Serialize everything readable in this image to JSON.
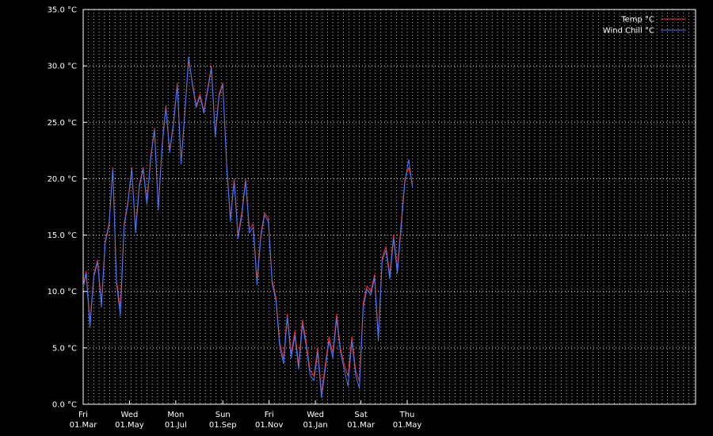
{
  "chart_data": {
    "type": "line",
    "background": "#000000",
    "grid": true,
    "legend_position": "top-right",
    "ylim": [
      0,
      35
    ],
    "yticks": [
      {
        "value": 0,
        "label": "0.0 °C"
      },
      {
        "value": 5,
        "label": "5.0 °C"
      },
      {
        "value": 10,
        "label": "10.0 °C"
      },
      {
        "value": 15,
        "label": "15.0 °C"
      },
      {
        "value": 20,
        "label": "20.0 °C"
      },
      {
        "value": 25,
        "label": "25.0 °C"
      },
      {
        "value": 30,
        "label": "30.0 °C"
      },
      {
        "value": 35,
        "label": "35.0 °C"
      }
    ],
    "x_range": [
      "2019-03-01",
      "2021-05-16"
    ],
    "xticks": [
      {
        "date": "2019-03-01",
        "day": "Fri",
        "date_label": "01.Mar"
      },
      {
        "date": "2019-05-01",
        "day": "Wed",
        "date_label": "01.May"
      },
      {
        "date": "2019-07-01",
        "day": "Mon",
        "date_label": "01.Jul"
      },
      {
        "date": "2019-09-01",
        "day": "Sun",
        "date_label": "01.Sep"
      },
      {
        "date": "2019-11-01",
        "day": "Fri",
        "date_label": "01.Nov"
      },
      {
        "date": "2020-01-01",
        "day": "Wed",
        "date_label": "01.Jan"
      },
      {
        "date": "2020-03-01",
        "day": "Sat",
        "date_label": "01.Mar"
      },
      {
        "date": "2020-05-01",
        "day": "Thu",
        "date_label": "01.May"
      }
    ],
    "series": [
      {
        "name": "Temp °C",
        "color": "#ff2a2a",
        "x": [
          "2019-03-01",
          "2019-03-05",
          "2019-03-10",
          "2019-03-15",
          "2019-03-20",
          "2019-03-25",
          "2019-03-30",
          "2019-04-04",
          "2019-04-09",
          "2019-04-14",
          "2019-04-19",
          "2019-04-24",
          "2019-04-29",
          "2019-05-04",
          "2019-05-09",
          "2019-05-14",
          "2019-05-19",
          "2019-05-24",
          "2019-05-29",
          "2019-06-03",
          "2019-06-08",
          "2019-06-13",
          "2019-06-18",
          "2019-06-23",
          "2019-06-28",
          "2019-07-03",
          "2019-07-08",
          "2019-07-13",
          "2019-07-18",
          "2019-07-23",
          "2019-07-28",
          "2019-08-02",
          "2019-08-07",
          "2019-08-12",
          "2019-08-17",
          "2019-08-22",
          "2019-08-27",
          "2019-09-01",
          "2019-09-06",
          "2019-09-11",
          "2019-09-16",
          "2019-09-21",
          "2019-09-26",
          "2019-10-01",
          "2019-10-06",
          "2019-10-11",
          "2019-10-16",
          "2019-10-21",
          "2019-10-26",
          "2019-10-31",
          "2019-11-05",
          "2019-11-10",
          "2019-11-15",
          "2019-11-20",
          "2019-11-25",
          "2019-11-30",
          "2019-12-05",
          "2019-12-10",
          "2019-12-15",
          "2019-12-20",
          "2019-12-25",
          "2019-12-30",
          "2020-01-04",
          "2020-01-09",
          "2020-01-14",
          "2020-01-19",
          "2020-01-24",
          "2020-01-29",
          "2020-02-03",
          "2020-02-08",
          "2020-02-13",
          "2020-02-18",
          "2020-02-23",
          "2020-02-28",
          "2020-03-04",
          "2020-03-09",
          "2020-03-14",
          "2020-03-19",
          "2020-03-24",
          "2020-03-29",
          "2020-04-03",
          "2020-04-08",
          "2020-04-13",
          "2020-04-18",
          "2020-04-23",
          "2020-04-28",
          "2020-05-03",
          "2020-05-08"
        ],
        "y": [
          10.5,
          11.8,
          7.2,
          11.5,
          12.8,
          9.0,
          14.5,
          16.0,
          21.0,
          11.0,
          8.5,
          16.0,
          18.0,
          21.0,
          15.5,
          19.5,
          21.0,
          18.0,
          22.0,
          24.5,
          17.5,
          23.0,
          26.5,
          22.5,
          25.0,
          28.5,
          21.5,
          26.0,
          30.5,
          28.5,
          26.5,
          27.5,
          26.0,
          28.0,
          30.0,
          24.0,
          27.5,
          28.5,
          21.5,
          16.5,
          20.0,
          15.0,
          17.0,
          20.0,
          15.5,
          16.0,
          11.0,
          15.0,
          17.0,
          16.5,
          11.0,
          9.5,
          5.5,
          4.0,
          8.0,
          4.5,
          6.5,
          3.5,
          7.5,
          5.5,
          3.0,
          2.5,
          5.0,
          1.0,
          3.5,
          6.0,
          4.5,
          8.0,
          5.0,
          3.5,
          2.5,
          6.0,
          3.0,
          2.0,
          9.0,
          10.5,
          10.0,
          11.5,
          6.0,
          13.0,
          14.0,
          11.5,
          15.0,
          12.0,
          16.0,
          20.0,
          21.0,
          19.5
        ]
      },
      {
        "name": "Wind Chill °C",
        "color": "#3d7dff",
        "x": [
          "2019-03-01",
          "2019-03-05",
          "2019-03-10",
          "2019-03-15",
          "2019-03-20",
          "2019-03-25",
          "2019-03-30",
          "2019-04-04",
          "2019-04-09",
          "2019-04-14",
          "2019-04-19",
          "2019-04-24",
          "2019-04-29",
          "2019-05-04",
          "2019-05-09",
          "2019-05-14",
          "2019-05-19",
          "2019-05-24",
          "2019-05-29",
          "2019-06-03",
          "2019-06-08",
          "2019-06-13",
          "2019-06-18",
          "2019-06-23",
          "2019-06-28",
          "2019-07-03",
          "2019-07-08",
          "2019-07-13",
          "2019-07-18",
          "2019-07-23",
          "2019-07-28",
          "2019-08-02",
          "2019-08-07",
          "2019-08-12",
          "2019-08-17",
          "2019-08-22",
          "2019-08-27",
          "2019-09-01",
          "2019-09-06",
          "2019-09-11",
          "2019-09-16",
          "2019-09-21",
          "2019-09-26",
          "2019-10-01",
          "2019-10-06",
          "2019-10-11",
          "2019-10-16",
          "2019-10-21",
          "2019-10-26",
          "2019-10-31",
          "2019-11-05",
          "2019-11-10",
          "2019-11-15",
          "2019-11-20",
          "2019-11-25",
          "2019-11-30",
          "2019-12-05",
          "2019-12-10",
          "2019-12-15",
          "2019-12-20",
          "2019-12-25",
          "2019-12-30",
          "2020-01-04",
          "2020-01-09",
          "2020-01-14",
          "2020-01-19",
          "2020-01-24",
          "2020-01-29",
          "2020-02-03",
          "2020-02-08",
          "2020-02-13",
          "2020-02-18",
          "2020-02-23",
          "2020-02-28",
          "2020-03-04",
          "2020-03-09",
          "2020-03-14",
          "2020-03-19",
          "2020-03-24",
          "2020-03-29",
          "2020-04-03",
          "2020-04-08",
          "2020-04-13",
          "2020-04-18",
          "2020-04-23",
          "2020-04-28",
          "2020-05-03",
          "2020-05-08"
        ],
        "y": [
          10.3,
          11.6,
          6.8,
          11.3,
          12.6,
          8.6,
          14.3,
          15.8,
          20.8,
          10.7,
          7.8,
          15.8,
          17.8,
          20.8,
          15.2,
          19.3,
          20.8,
          17.7,
          21.8,
          24.3,
          17.2,
          22.8,
          26.3,
          22.3,
          24.8,
          28.3,
          21.3,
          25.8,
          30.8,
          28.3,
          26.3,
          27.3,
          25.8,
          27.8,
          29.8,
          23.7,
          27.3,
          28.3,
          21.3,
          16.2,
          19.8,
          14.7,
          16.7,
          19.8,
          15.2,
          15.7,
          10.6,
          14.7,
          16.8,
          16.2,
          10.7,
          9.2,
          5.1,
          3.6,
          7.7,
          4.1,
          6.1,
          3.1,
          7.1,
          5.1,
          2.6,
          2.1,
          4.6,
          0.6,
          3.1,
          5.6,
          4.1,
          7.6,
          4.6,
          3.1,
          1.6,
          5.6,
          2.6,
          1.4,
          8.6,
          10.2,
          9.7,
          11.2,
          5.6,
          12.7,
          13.7,
          11.1,
          14.7,
          11.6,
          15.6,
          19.7,
          21.7,
          19.2
        ]
      }
    ]
  }
}
